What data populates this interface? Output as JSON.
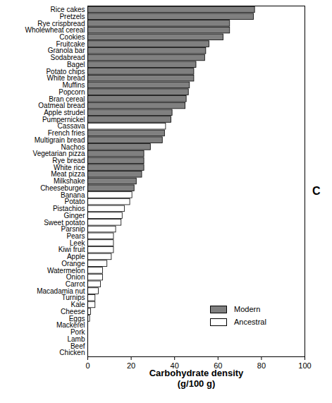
{
  "chart_data": {
    "type": "bar",
    "orientation": "horizontal",
    "stacked": false,
    "annotation": "C",
    "x_label": "Carbohydrate density\n(g/100 g)",
    "categories": [
      "Rice cakes",
      "Pretzels",
      "Rye crispbread",
      "Wholewheat cereal",
      "Cookies",
      "Fruitcake",
      "Granola bar",
      "Sodabread",
      "Bagel",
      "Potato chips",
      "White bread",
      "Muffins",
      "Popcorn",
      "Bran cereal",
      "Oatmeal bread",
      "Apple strudel",
      "Pumpernickel",
      "Cassava",
      "French fries",
      "Multigrain bread",
      "Nachos",
      "Vegetarian pizza",
      "Rye bread",
      "White rice",
      "Meat pizza",
      "Milkshake",
      "Cheeseburger",
      "Banana",
      "Potato",
      "Pistachios",
      "Ginger",
      "Sweet potato",
      "Parsnip",
      "Pears",
      "Leek",
      "Kiwi fruit",
      "Apple",
      "Orange",
      "Watermelon",
      "Onion",
      "Carrot",
      "Macadamia nut",
      "Turnips",
      "Kale",
      "Cheese",
      "Eggs",
      "Mackerel",
      "Pork",
      "Lamb",
      "Beef",
      "Chicken"
    ],
    "series": [
      {
        "name": "Modern",
        "color": "#808080",
        "values": [
          77,
          76.5,
          65.5,
          65.5,
          62.5,
          56,
          54.5,
          54,
          50,
          49,
          49,
          47,
          46.5,
          45.5,
          45,
          39,
          38.5,
          null,
          35.5,
          34.5,
          29,
          26,
          26,
          26,
          25,
          22.5,
          21.5,
          null,
          null,
          null,
          null,
          null,
          null,
          null,
          null,
          null,
          null,
          null,
          null,
          null,
          null,
          null,
          null,
          null,
          null,
          null,
          null,
          null,
          null,
          null,
          null
        ]
      },
      {
        "name": "Ancestral",
        "color": "#ffffff",
        "values": [
          null,
          null,
          null,
          null,
          null,
          null,
          null,
          null,
          null,
          null,
          null,
          null,
          null,
          null,
          null,
          null,
          null,
          36,
          null,
          null,
          null,
          null,
          null,
          null,
          null,
          null,
          null,
          20.5,
          19.5,
          17,
          16,
          15.5,
          13,
          12,
          12,
          12,
          11,
          9,
          7,
          7,
          6,
          5,
          3.5,
          3.5,
          1.5,
          1,
          0,
          0,
          0,
          0,
          0
        ]
      }
    ],
    "xlim": [
      0,
      100
    ],
    "xticks": [
      0,
      20,
      40,
      60,
      80,
      100
    ],
    "grid": false,
    "legend": "lower right"
  }
}
